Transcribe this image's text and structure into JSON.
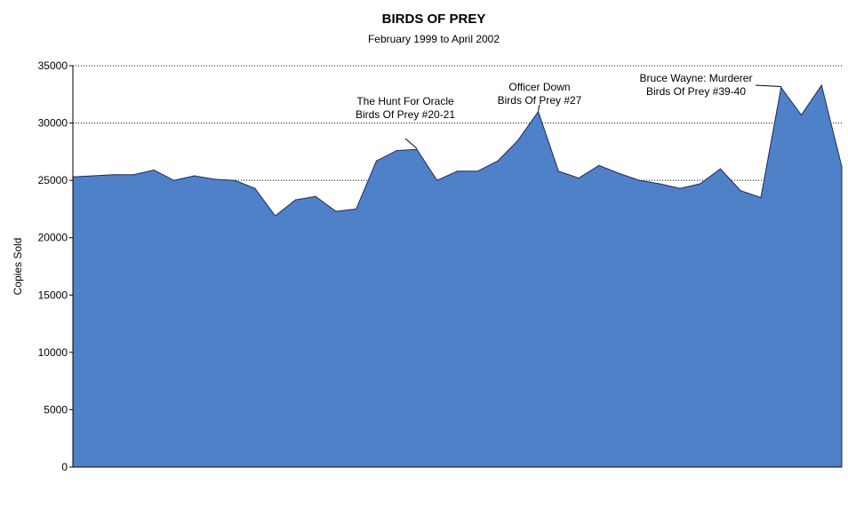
{
  "chart_data": {
    "type": "area",
    "title": "BIRDS OF PREY",
    "subtitle": "February 1999 to April 2002",
    "ylabel": "Copies Sold",
    "xlabel": "",
    "ylim": [
      0,
      35000
    ],
    "yticks": [
      0,
      5000,
      10000,
      15000,
      20000,
      25000,
      30000,
      35000
    ],
    "ytick_labels": [
      "0",
      "5000",
      "10000",
      "15000",
      "20000",
      "25000",
      "30000",
      "35000"
    ],
    "grid": "horizontal dotted",
    "fill_color": "#4f81c8",
    "line_color": "#1f2a5a",
    "values": [
      25300,
      25400,
      25500,
      25500,
      25900,
      25000,
      25400,
      25100,
      25000,
      24300,
      21900,
      23300,
      23600,
      22300,
      22500,
      26700,
      27600,
      27700,
      25000,
      25800,
      25800,
      26700,
      28500,
      31000,
      25800,
      25200,
      26300,
      25600,
      25000,
      24700,
      24300,
      24700,
      26000,
      24100,
      23500,
      33100,
      30700,
      33300,
      26200
    ],
    "annotations": [
      {
        "lines": [
          "The Hunt For Oracle",
          "Birds Of Prey #20-21"
        ],
        "index": 17
      },
      {
        "lines": [
          "Officer Down",
          "Birds Of Prey #27"
        ],
        "index": 23
      },
      {
        "lines": [
          "Bruce Wayne: Murderer",
          "Birds Of Prey #39-40"
        ],
        "index": 35
      }
    ]
  }
}
